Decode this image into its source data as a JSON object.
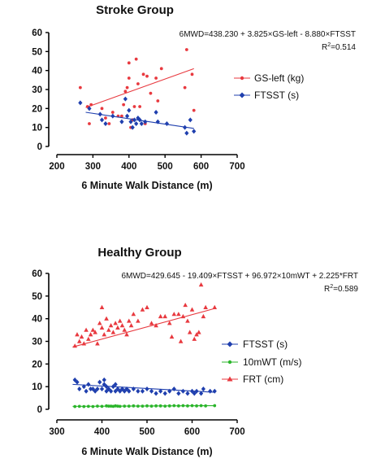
{
  "chart_data": [
    {
      "type": "scatter",
      "title": "Stroke Group",
      "xlabel": "6 Minute Walk Distance (m)",
      "ylabel": "",
      "xlim": [
        200,
        700
      ],
      "ylim": [
        0,
        60
      ],
      "xticks": [
        "200",
        "300",
        "400",
        "500",
        "600",
        "700"
      ],
      "yticks": [
        "0",
        "10",
        "20",
        "30",
        "40",
        "50",
        "60"
      ],
      "equation": "6MWD=438.230 + 3.825×GS-left - 8.880×FTSST",
      "r2_label": "R",
      "r2_sup": "2",
      "r2_value": "=0.514",
      "legend_position": "right",
      "series": [
        {
          "name": "GS-left (kg)",
          "color": "#e8393f",
          "marker": "circle",
          "points": [
            [
              265,
              31
            ],
            [
              285,
              21
            ],
            [
              290,
              12
            ],
            [
              295,
              22
            ],
            [
              325,
              20
            ],
            [
              335,
              15
            ],
            [
              345,
              12
            ],
            [
              355,
              18
            ],
            [
              370,
              16
            ],
            [
              380,
              16
            ],
            [
              385,
              22
            ],
            [
              390,
              29
            ],
            [
              395,
              31
            ],
            [
              400,
              36
            ],
            [
              400,
              44
            ],
            [
              405,
              10
            ],
            [
              410,
              14
            ],
            [
              415,
              21
            ],
            [
              420,
              46
            ],
            [
              425,
              33
            ],
            [
              430,
              21
            ],
            [
              440,
              38
            ],
            [
              445,
              12
            ],
            [
              450,
              37
            ],
            [
              460,
              28
            ],
            [
              475,
              36
            ],
            [
              480,
              24
            ],
            [
              490,
              41
            ],
            [
              555,
              31
            ],
            [
              560,
              51
            ],
            [
              575,
              38
            ],
            [
              580,
              19
            ]
          ],
          "trend": [
            [
              280,
              20.5
            ],
            [
              580,
              41
            ]
          ]
        },
        {
          "name": "FTSST (s)",
          "color": "#1f3fae",
          "marker": "diamond",
          "points": [
            [
              265,
              23
            ],
            [
              290,
              20
            ],
            [
              320,
              17
            ],
            [
              325,
              14
            ],
            [
              335,
              12
            ],
            [
              355,
              16
            ],
            [
              380,
              13
            ],
            [
              390,
              25
            ],
            [
              395,
              16
            ],
            [
              400,
              19
            ],
            [
              405,
              13
            ],
            [
              410,
              10
            ],
            [
              415,
              14
            ],
            [
              420,
              12
            ],
            [
              425,
              15
            ],
            [
              430,
              14
            ],
            [
              435,
              12
            ],
            [
              445,
              13
            ],
            [
              475,
              18
            ],
            [
              480,
              13
            ],
            [
              505,
              12
            ],
            [
              555,
              10
            ],
            [
              560,
              7
            ],
            [
              570,
              14
            ],
            [
              580,
              8
            ]
          ],
          "trend": [
            [
              280,
              18
            ],
            [
              580,
              9.5
            ]
          ]
        }
      ]
    },
    {
      "type": "scatter",
      "title": "Healthy Group",
      "xlabel": "6 Minute Walk Distance (m)",
      "ylabel": "",
      "xlim": [
        300,
        700
      ],
      "ylim": [
        0,
        60
      ],
      "xticks": [
        "300",
        "400",
        "500",
        "600",
        "700"
      ],
      "yticks": [
        "0",
        "10",
        "20",
        "30",
        "40",
        "50",
        "60"
      ],
      "equation": "6MWD=429.645 - 19.409×FTSST + 96.972×10mWT + 2.225*FRT",
      "r2_label": "R",
      "r2_sup": "2",
      "r2_value": "=0.589",
      "legend_position": "right",
      "series": [
        {
          "name": "FTSST (s)",
          "color": "#1f3fae",
          "marker": "diamond",
          "points": [
            [
              340,
              13
            ],
            [
              345,
              12
            ],
            [
              350,
              9
            ],
            [
              360,
              10
            ],
            [
              365,
              8
            ],
            [
              370,
              11
            ],
            [
              375,
              9
            ],
            [
              380,
              9
            ],
            [
              385,
              8
            ],
            [
              390,
              9
            ],
            [
              395,
              12
            ],
            [
              400,
              9
            ],
            [
              405,
              13
            ],
            [
              405,
              11
            ],
            [
              410,
              8
            ],
            [
              410,
              10
            ],
            [
              415,
              9
            ],
            [
              420,
              8
            ],
            [
              425,
              10
            ],
            [
              430,
              8
            ],
            [
              430,
              11
            ],
            [
              435,
              9
            ],
            [
              440,
              8
            ],
            [
              445,
              9
            ],
            [
              450,
              8
            ],
            [
              455,
              9
            ],
            [
              460,
              8
            ],
            [
              470,
              9
            ],
            [
              480,
              8
            ],
            [
              490,
              8
            ],
            [
              500,
              9
            ],
            [
              510,
              8
            ],
            [
              520,
              7
            ],
            [
              530,
              8
            ],
            [
              540,
              7
            ],
            [
              550,
              8
            ],
            [
              560,
              9
            ],
            [
              570,
              7
            ],
            [
              580,
              8
            ],
            [
              590,
              7
            ],
            [
              600,
              8
            ],
            [
              605,
              7
            ],
            [
              610,
              8
            ],
            [
              620,
              7
            ],
            [
              625,
              9
            ],
            [
              640,
              8
            ],
            [
              650,
              8
            ]
          ],
          "trend": [
            [
              335,
              11
            ],
            [
              650,
              7.5
            ]
          ]
        },
        {
          "name": "10mWT (m/s)",
          "color": "#2bb52b",
          "marker": "circle",
          "points": [
            [
              340,
              1.2
            ],
            [
              350,
              1.3
            ],
            [
              360,
              1.2
            ],
            [
              370,
              1.3
            ],
            [
              380,
              1.2
            ],
            [
              390,
              1.4
            ],
            [
              400,
              1.3
            ],
            [
              410,
              1.5
            ],
            [
              415,
              1.4
            ],
            [
              420,
              1.4
            ],
            [
              425,
              1.3
            ],
            [
              430,
              1.5
            ],
            [
              435,
              1.4
            ],
            [
              440,
              1.3
            ],
            [
              450,
              1.4
            ],
            [
              460,
              1.4
            ],
            [
              470,
              1.5
            ],
            [
              480,
              1.4
            ],
            [
              490,
              1.4
            ],
            [
              500,
              1.5
            ],
            [
              510,
              1.4
            ],
            [
              520,
              1.5
            ],
            [
              530,
              1.5
            ],
            [
              540,
              1.4
            ],
            [
              550,
              1.5
            ],
            [
              560,
              1.6
            ],
            [
              570,
              1.5
            ],
            [
              580,
              1.6
            ],
            [
              590,
              1.5
            ],
            [
              600,
              1.6
            ],
            [
              610,
              1.5
            ],
            [
              620,
              1.6
            ],
            [
              630,
              1.5
            ],
            [
              650,
              1.6
            ]
          ],
          "trend": [
            [
              335,
              1.3
            ],
            [
              650,
              1.6
            ]
          ]
        },
        {
          "name": "FRT (cm)",
          "color": "#e8393f",
          "marker": "triangle",
          "points": [
            [
              340,
              28
            ],
            [
              345,
              33
            ],
            [
              350,
              30
            ],
            [
              355,
              32
            ],
            [
              360,
              29
            ],
            [
              365,
              35
            ],
            [
              370,
              31
            ],
            [
              375,
              33
            ],
            [
              380,
              35
            ],
            [
              385,
              34
            ],
            [
              390,
              29
            ],
            [
              395,
              38
            ],
            [
              400,
              36
            ],
            [
              400,
              45
            ],
            [
              405,
              33
            ],
            [
              410,
              40
            ],
            [
              415,
              35
            ],
            [
              420,
              37
            ],
            [
              425,
              34
            ],
            [
              430,
              38
            ],
            [
              435,
              36
            ],
            [
              440,
              39
            ],
            [
              445,
              37
            ],
            [
              450,
              35
            ],
            [
              455,
              33
            ],
            [
              460,
              39
            ],
            [
              465,
              37
            ],
            [
              470,
              42
            ],
            [
              480,
              39
            ],
            [
              490,
              44
            ],
            [
              500,
              45
            ],
            [
              510,
              38
            ],
            [
              520,
              37
            ],
            [
              530,
              41
            ],
            [
              540,
              41
            ],
            [
              550,
              38
            ],
            [
              555,
              32
            ],
            [
              560,
              42
            ],
            [
              570,
              42
            ],
            [
              575,
              30
            ],
            [
              580,
              41
            ],
            [
              585,
              46
            ],
            [
              590,
              39
            ],
            [
              595,
              34
            ],
            [
              600,
              44
            ],
            [
              605,
              31
            ],
            [
              610,
              33
            ],
            [
              615,
              34
            ],
            [
              620,
              55
            ],
            [
              625,
              41
            ],
            [
              630,
              45
            ],
            [
              650,
              45
            ]
          ],
          "trend": [
            [
              335,
              27.5
            ],
            [
              650,
              44.5
            ]
          ]
        }
      ]
    }
  ]
}
